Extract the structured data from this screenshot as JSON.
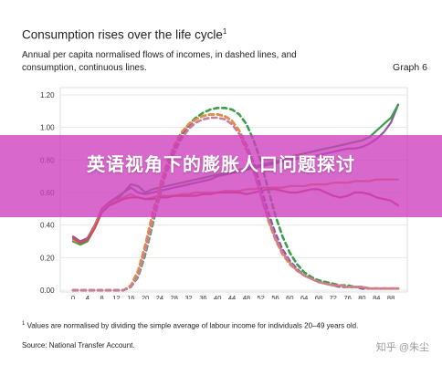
{
  "header": {
    "title": "Consumption rises over the life cycle",
    "title_footnote_mark": "1",
    "subtitle": "Annual per capita normalised flows of incomes, in dashed lines, and consumption, continuous lines.",
    "graph_number": "Graph 6"
  },
  "overlay": {
    "title": "英语视角下的膨胀人口问题探讨",
    "background": "#cd3ebe"
  },
  "footnote": {
    "mark": "1",
    "text": "Values are normalised by dividing the simple average of labour income for individuals 20–49 years old."
  },
  "source": "Source: National Transfer Account.",
  "watermark": "知乎 @朱尘",
  "chart_data": {
    "type": "line",
    "x": [
      0,
      2,
      4,
      6,
      8,
      10,
      12,
      14,
      16,
      18,
      20,
      22,
      24,
      26,
      28,
      30,
      32,
      34,
      36,
      38,
      40,
      42,
      44,
      46,
      48,
      50,
      52,
      54,
      56,
      58,
      60,
      62,
      64,
      66,
      68,
      70,
      72,
      74,
      76,
      78,
      80,
      82,
      84,
      86,
      88,
      90
    ],
    "x_tick_labels": [
      "0",
      "4",
      "8",
      "12",
      "16",
      "20",
      "24",
      "28",
      "32",
      "36",
      "40",
      "44",
      "48",
      "52",
      "56",
      "60",
      "64",
      "68",
      "72",
      "76",
      "80",
      "84",
      "88"
    ],
    "y_tick_labels": [
      "0.00",
      "0.20",
      "0.40",
      "0.60",
      "0.80",
      "1.00",
      "1.20"
    ],
    "ylim": [
      0,
      1.2
    ],
    "grid": "horizontal",
    "legend": "none",
    "series": [
      {
        "style": "solid",
        "color": "#8e5c9e",
        "values": [
          0.33,
          0.3,
          0.32,
          0.4,
          0.5,
          0.54,
          0.57,
          0.6,
          0.63,
          0.6,
          0.59,
          0.6,
          0.61,
          0.62,
          0.63,
          0.64,
          0.65,
          0.66,
          0.67,
          0.68,
          0.7,
          0.71,
          0.72,
          0.73,
          0.74,
          0.75,
          0.76,
          0.77,
          0.78,
          0.79,
          0.8,
          0.81,
          0.81,
          0.82,
          0.83,
          0.84,
          0.85,
          0.86,
          0.87,
          0.87,
          0.88,
          0.9,
          0.93,
          0.97,
          1.03,
          1.14
        ]
      },
      {
        "style": "solid",
        "color": "#3a9e4a",
        "values": [
          0.3,
          0.28,
          0.3,
          0.38,
          0.48,
          0.52,
          0.55,
          0.6,
          0.65,
          0.64,
          0.6,
          0.62,
          0.63,
          0.64,
          0.65,
          0.66,
          0.67,
          0.68,
          0.69,
          0.7,
          0.71,
          0.72,
          0.73,
          0.74,
          0.75,
          0.76,
          0.77,
          0.78,
          0.79,
          0.8,
          0.82,
          0.83,
          0.84,
          0.85,
          0.86,
          0.87,
          0.88,
          0.89,
          0.9,
          0.91,
          0.92,
          0.94,
          0.98,
          1.02,
          1.06,
          1.14
        ]
      },
      {
        "style": "solid",
        "color": "#e98a41",
        "values": [
          0.31,
          0.29,
          0.31,
          0.39,
          0.49,
          0.53,
          0.55,
          0.57,
          0.59,
          0.57,
          0.56,
          0.57,
          0.58,
          0.58,
          0.58,
          0.59,
          0.59,
          0.6,
          0.6,
          0.6,
          0.6,
          0.61,
          0.61,
          0.61,
          0.62,
          0.62,
          0.63,
          0.63,
          0.63,
          0.63,
          0.64,
          0.64,
          0.64,
          0.65,
          0.65,
          0.65,
          0.66,
          0.66,
          0.66,
          0.67,
          0.67,
          0.67,
          0.68,
          0.68,
          0.68,
          0.68
        ]
      },
      {
        "style": "solid",
        "color": "#d24b5a",
        "values": [
          0.32,
          0.29,
          0.31,
          0.38,
          0.48,
          0.52,
          0.54,
          0.56,
          0.57,
          0.57,
          0.56,
          0.56,
          0.57,
          0.57,
          0.58,
          0.58,
          0.58,
          0.58,
          0.59,
          0.59,
          0.6,
          0.6,
          0.6,
          0.6,
          0.59,
          0.6,
          0.61,
          0.62,
          0.62,
          0.61,
          0.6,
          0.6,
          0.61,
          0.62,
          0.62,
          0.6,
          0.58,
          0.57,
          0.58,
          0.6,
          0.6,
          0.59,
          0.57,
          0.56,
          0.55,
          0.52
        ]
      },
      {
        "style": "dashed",
        "color": "#3a9e4a",
        "values": [
          0.0,
          0.0,
          0.0,
          0.0,
          0.0,
          0.0,
          0.0,
          0.0,
          0.02,
          0.08,
          0.22,
          0.4,
          0.58,
          0.74,
          0.87,
          0.96,
          1.02,
          1.06,
          1.09,
          1.11,
          1.12,
          1.12,
          1.11,
          1.08,
          1.02,
          0.92,
          0.79,
          0.62,
          0.46,
          0.33,
          0.23,
          0.16,
          0.11,
          0.08,
          0.06,
          0.05,
          0.04,
          0.03,
          0.03,
          0.02,
          0.02,
          0.01,
          0.01,
          0.01,
          0.01,
          0.01
        ]
      },
      {
        "style": "dashed",
        "color": "#8e5c9e",
        "values": [
          0.0,
          0.0,
          0.0,
          0.0,
          0.0,
          0.0,
          0.0,
          0.0,
          0.02,
          0.1,
          0.26,
          0.44,
          0.61,
          0.75,
          0.86,
          0.95,
          1.01,
          1.05,
          1.07,
          1.08,
          1.08,
          1.07,
          1.04,
          0.98,
          0.89,
          0.78,
          0.63,
          0.48,
          0.35,
          0.25,
          0.18,
          0.13,
          0.09,
          0.07,
          0.05,
          0.04,
          0.03,
          0.02,
          0.02,
          0.02,
          0.01,
          0.01,
          0.01,
          0.01,
          0.01,
          0.01
        ]
      },
      {
        "style": "dashed",
        "color": "#e98a41",
        "values": [
          0.0,
          0.0,
          0.0,
          0.0,
          0.0,
          0.0,
          0.0,
          0.0,
          0.03,
          0.12,
          0.28,
          0.47,
          0.64,
          0.78,
          0.89,
          0.97,
          1.02,
          1.05,
          1.07,
          1.08,
          1.08,
          1.07,
          1.04,
          0.98,
          0.88,
          0.74,
          0.58,
          0.43,
          0.31,
          0.22,
          0.16,
          0.12,
          0.09,
          0.07,
          0.05,
          0.04,
          0.03,
          0.03,
          0.02,
          0.02,
          0.02,
          0.01,
          0.01,
          0.01,
          0.01,
          0.01
        ]
      },
      {
        "style": "dashed",
        "color": "#c77f9a",
        "values": [
          0.0,
          0.0,
          0.0,
          0.0,
          0.0,
          0.0,
          0.0,
          0.0,
          0.02,
          0.09,
          0.24,
          0.42,
          0.59,
          0.73,
          0.84,
          0.93,
          0.99,
          1.03,
          1.05,
          1.06,
          1.06,
          1.05,
          1.02,
          0.96,
          0.86,
          0.73,
          0.58,
          0.44,
          0.32,
          0.23,
          0.17,
          0.12,
          0.09,
          0.07,
          0.05,
          0.04,
          0.03,
          0.03,
          0.02,
          0.02,
          0.02,
          0.01,
          0.01,
          0.01,
          0.01,
          0.01
        ]
      }
    ]
  }
}
